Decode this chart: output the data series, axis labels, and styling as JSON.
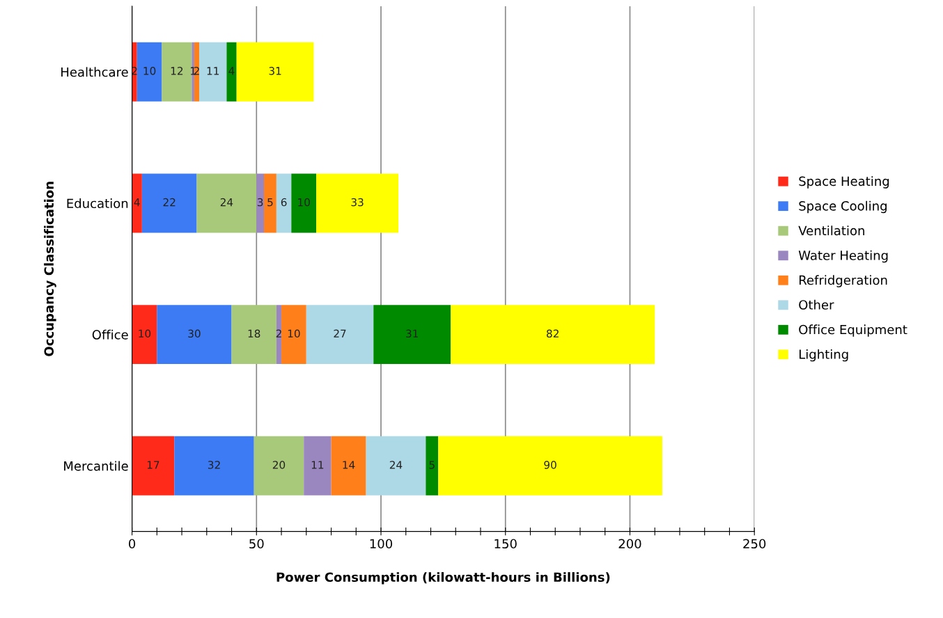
{
  "chart_data": {
    "type": "bar",
    "orientation": "horizontal",
    "stacked": true,
    "data_labels": true,
    "grid": "x",
    "legend": "right",
    "xlabel": "Power Consumption (kilowatt-hours in Billions)",
    "ylabel": "Occupancy Classification",
    "categories": [
      "Healthcare",
      "Education",
      "Office",
      "Mercantile"
    ],
    "xlim": [
      0,
      250
    ],
    "xticks": [
      0,
      {
        "value": 10,
        "label": null
      },
      {
        "value": 20,
        "label": null
      },
      {
        "value": 30,
        "label": null
      },
      {
        "value": 40,
        "label": null
      },
      50,
      {
        "value": 60,
        "label": null
      },
      {
        "value": 70,
        "label": null
      },
      {
        "value": 80,
        "label": null
      },
      {
        "value": 90,
        "label": null
      },
      100,
      {
        "value": 110,
        "label": null
      },
      {
        "value": 120,
        "label": null
      },
      {
        "value": 130,
        "label": null
      },
      {
        "value": 140,
        "label": null
      },
      150,
      {
        "value": 160,
        "label": null
      },
      {
        "value": 170,
        "label": null
      },
      {
        "value": 180,
        "label": null
      },
      {
        "value": 190,
        "label": null
      },
      200,
      {
        "value": 210,
        "label": null
      },
      {
        "value": 220,
        "label": null
      },
      {
        "value": 230,
        "label": null
      },
      {
        "value": 240,
        "label": null
      },
      250
    ],
    "series": [
      {
        "name": "Space Heating",
        "color": "#ff2a1a",
        "values": [
          2,
          4,
          10,
          17
        ]
      },
      {
        "name": "Space Cooling",
        "color": "#3d7bf5",
        "values": [
          10,
          22,
          30,
          32
        ]
      },
      {
        "name": "Ventilation",
        "color": "#a8c97a",
        "values": [
          12,
          24,
          18,
          20
        ]
      },
      {
        "name": "Water Heating",
        "color": "#9b87c0",
        "values": [
          1,
          3,
          2,
          11
        ]
      },
      {
        "name": "Refridgeration",
        "color": "#ff7f1a",
        "values": [
          2,
          5,
          10,
          14
        ]
      },
      {
        "name": "Other",
        "color": "#add8e6",
        "values": [
          11,
          6,
          27,
          24
        ]
      },
      {
        "name": "Office Equipment",
        "color": "#008a00",
        "values": [
          4,
          10,
          31,
          5
        ]
      },
      {
        "name": "Lighting",
        "color": "#ffff00",
        "values": [
          31,
          33,
          82,
          90
        ]
      }
    ]
  }
}
